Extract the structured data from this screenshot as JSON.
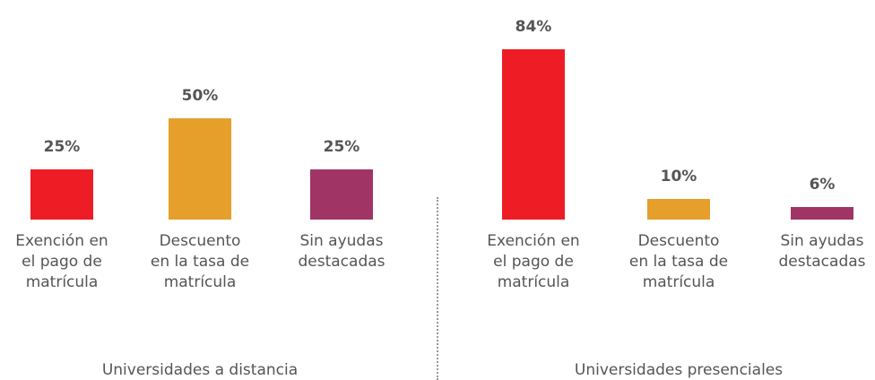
{
  "chart_data": [
    {
      "type": "bar",
      "xlabel": "Universidades a distancia",
      "categories": [
        "Exención en\nel pago de\nmatrícula",
        "Descuento\nen la tasa de\nmatrícula",
        "Sin ayudas\ndestacadas"
      ],
      "values": [
        25,
        50,
        25
      ],
      "value_labels": [
        "25%",
        "50%",
        "25%"
      ],
      "colors": [
        "#ee1d25",
        "#e59f2a",
        "#a03565"
      ]
    },
    {
      "type": "bar",
      "xlabel": "Universidades presenciales",
      "categories": [
        "Exención en\nel pago de\nmatrícula",
        "Descuento\nen la tasa de\nmatrícula",
        "Sin ayudas\ndestacadas"
      ],
      "values": [
        84,
        10,
        6
      ],
      "value_labels": [
        "84%",
        "10%",
        "6%"
      ],
      "colors": [
        "#ee1d25",
        "#e59f2a",
        "#a03565"
      ]
    }
  ]
}
